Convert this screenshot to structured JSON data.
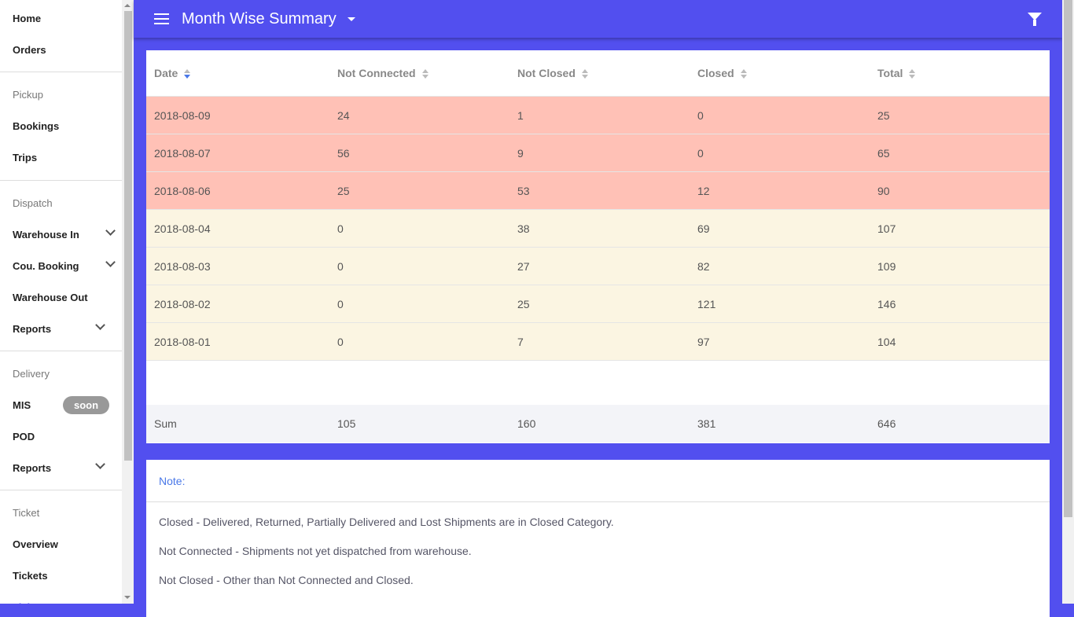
{
  "sidebar": {
    "home": "Home",
    "orders": "Orders",
    "pickup": "Pickup",
    "bookings": "Bookings",
    "trips": "Trips",
    "dispatch": "Dispatch",
    "warehouse_in": "Warehouse In",
    "cou_booking": "Cou. Booking",
    "warehouse_out": "Warehouse Out",
    "reports1": "Reports",
    "delivery": "Delivery",
    "mis": "MIS",
    "soon": "soon",
    "pod": "POD",
    "reports2": "Reports",
    "ticket": "Ticket",
    "overview": "Overview",
    "tickets": "Tickets",
    "ticket_reports": "Ticket Reports"
  },
  "header": {
    "title": "Month Wise Summary",
    "accent": "#524fef"
  },
  "table": {
    "columns": [
      "Date",
      "Not Connected",
      "Not Closed",
      "Closed",
      "Total"
    ],
    "rows": [
      [
        "2018-08-09",
        "24",
        "1",
        "0",
        "25"
      ],
      [
        "2018-08-07",
        "56",
        "9",
        "0",
        "65"
      ],
      [
        "2018-08-06",
        "25",
        "53",
        "12",
        "90"
      ],
      [
        "2018-08-04",
        "0",
        "38",
        "69",
        "107"
      ],
      [
        "2018-08-03",
        "0",
        "27",
        "82",
        "109"
      ],
      [
        "2018-08-02",
        "0",
        "25",
        "121",
        "146"
      ],
      [
        "2018-08-01",
        "0",
        "7",
        "97",
        "104"
      ]
    ],
    "row_status": [
      "red",
      "red",
      "red",
      "cream",
      "cream",
      "cream",
      "cream"
    ],
    "sum": [
      "Sum",
      "105",
      "160",
      "381",
      "646"
    ]
  },
  "note": {
    "title": "Note:",
    "lines": [
      "Closed - Delivered, Returned, Partially Delivered and Lost Shipments are in Closed Category.",
      "Not Connected - Shipments not yet dispatched from warehouse.",
      "Not Closed - Other than Not Connected and Closed."
    ]
  }
}
